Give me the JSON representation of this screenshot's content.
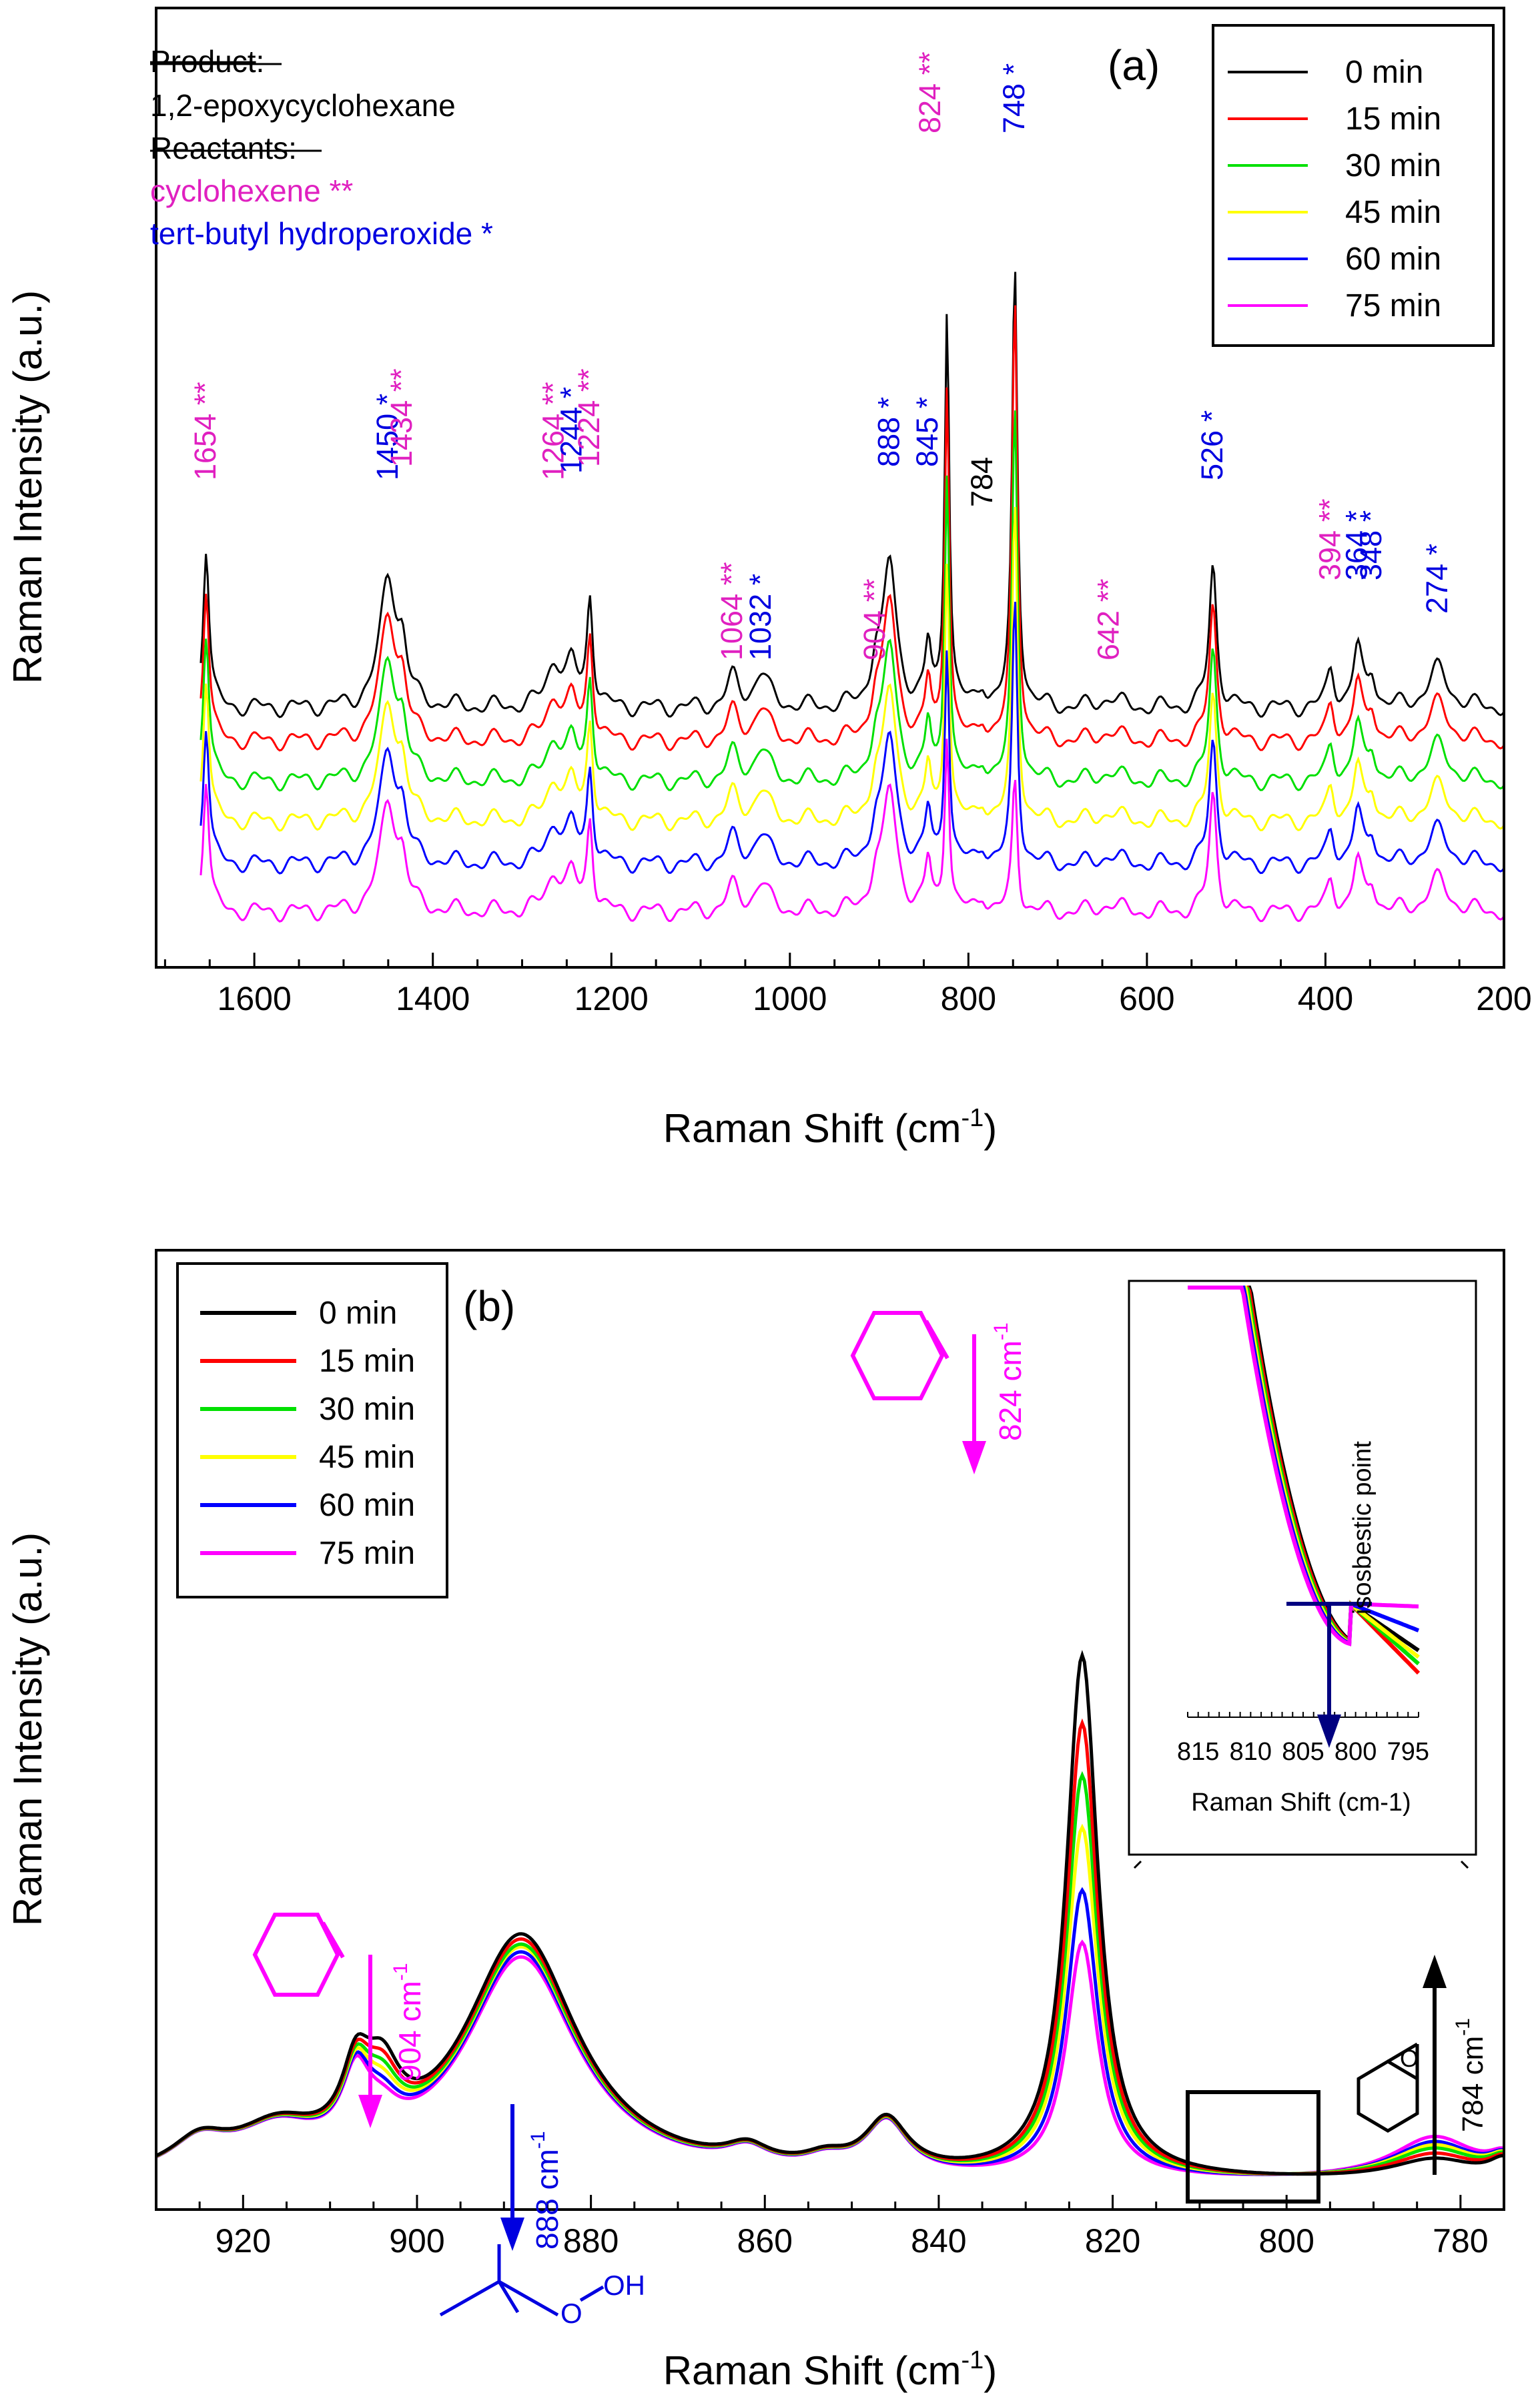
{
  "chart_data": [
    {
      "panel_label": "(a)",
      "type": "line",
      "xlabel": "Raman Shift (cm",
      "xlabel_sup": "-1",
      "xlabel_tail": ")",
      "ylabel": "Raman Intensity (a.u.)",
      "xlim": [
        1710,
        200
      ],
      "x_ticks": [
        "1600",
        "1400",
        "1200",
        "1000",
        "800",
        "600",
        "400",
        "200"
      ],
      "x_tick_values": [
        1600,
        1400,
        1200,
        1000,
        800,
        600,
        400,
        200
      ],
      "legend": [
        {
          "label": "0 min",
          "color": "#000000"
        },
        {
          "label": "15 min",
          "color": "#ff0000"
        },
        {
          "label": "30 min",
          "color": "#00e000"
        },
        {
          "label": "45 min",
          "color": "#ffff00"
        },
        {
          "label": "60 min",
          "color": "#0000ff"
        },
        {
          "label": "75 min",
          "color": "#ff00ff"
        }
      ],
      "series_offsets": [
        0,
        1,
        2,
        3,
        4,
        5
      ],
      "key": {
        "product_heading": "Product",
        "product_colon": ":",
        "product": "1,2-epoxycyclohexane",
        "reactants_heading": "Reactants",
        "reactants_colon": ":",
        "reactant_1": "cyclohexene **",
        "reactant_1_color": "#e020c0",
        "reactant_2": "tert-butyl hydroperoxide *",
        "reactant_2_color": "#0000e0"
      },
      "peaks": [
        {
          "x": 1654,
          "h": 1.25,
          "w": 4,
          "label": "1654 **",
          "color": "#e020c0"
        },
        {
          "x": 1450,
          "h": 1.0,
          "w": 11,
          "label": "1450 *",
          "color": "#0000e0"
        },
        {
          "x": 1434,
          "h": 0.35,
          "w": 6,
          "label": "1434 **",
          "color": "#e020c0"
        },
        {
          "x": 1264,
          "h": 0.35,
          "w": 10,
          "label": "1264 **",
          "color": "#e020c0"
        },
        {
          "x": 1244,
          "h": 0.3,
          "w": 7,
          "label": "1244 *",
          "color": "#0000e0"
        },
        {
          "x": 1224,
          "h": 0.85,
          "w": 4,
          "label": "1224 **",
          "color": "#e020c0"
        },
        {
          "x": 1064,
          "h": 0.22,
          "w": 8,
          "label": "1064 **",
          "color": "#e020c0"
        },
        {
          "x": 1032,
          "h": 0.26,
          "w": 10,
          "label": "1032 *",
          "color": "#0000e0"
        },
        {
          "x": 904,
          "h": 0.3,
          "w": 6,
          "label": "904 **",
          "color": "#e020c0"
        },
        {
          "x": 888,
          "h": 1.1,
          "w": 9,
          "label": "888 *",
          "color": "#0000e0"
        },
        {
          "x": 845,
          "h": 0.45,
          "w": 4,
          "label": "845 *",
          "color": "#0000e0"
        },
        {
          "x": 824,
          "h": 3.1,
          "w": 3,
          "label": "824 **",
          "color": "#e020c0"
        },
        {
          "x": 784,
          "h": 0.15,
          "w": 5,
          "label": "784",
          "color": "#000000"
        },
        {
          "x": 748,
          "h": 3.4,
          "w": 3.5,
          "label": "748 *",
          "color": "#0000e0"
        },
        {
          "x": 642,
          "h": 0.08,
          "w": 12,
          "label": "642 **",
          "color": "#e020c0"
        },
        {
          "x": 526,
          "h": 1.1,
          "w": 5,
          "label": "526 *",
          "color": "#0000e0"
        },
        {
          "x": 394,
          "h": 0.3,
          "w": 5,
          "label": "394 **",
          "color": "#e020c0"
        },
        {
          "x": 364,
          "h": 0.45,
          "w": 6,
          "label": "364 *",
          "color": "#0000e0"
        },
        {
          "x": 348,
          "h": 0.25,
          "w": 5,
          "label": "348 *",
          "color": "#0000e0"
        },
        {
          "x": 274,
          "h": 0.3,
          "w": 14,
          "label": "274 *",
          "color": "#0000e0"
        }
      ]
    },
    {
      "panel_label": "(b)",
      "type": "line",
      "xlabel": "Raman Shift (cm",
      "xlabel_sup": "-1",
      "xlabel_tail": ")",
      "ylabel": "Raman Intensity (a.u.)",
      "xlim": [
        930,
        775
      ],
      "x_ticks": [
        "920",
        "900",
        "880",
        "860",
        "840",
        "820",
        "800",
        "780"
      ],
      "x_tick_values": [
        920,
        900,
        880,
        860,
        840,
        820,
        800,
        780
      ],
      "legend": [
        {
          "label": "0 min",
          "color": "#000000"
        },
        {
          "label": "15 min",
          "color": "#ff0000"
        },
        {
          "label": "30 min",
          "color": "#00e000"
        },
        {
          "label": "45 min",
          "color": "#ffff00"
        },
        {
          "label": "60 min",
          "color": "#0000ff"
        },
        {
          "label": "75 min",
          "color": "#ff00ff"
        }
      ],
      "peak_824_scale": [
        1.0,
        0.87,
        0.77,
        0.67,
        0.55,
        0.45
      ],
      "peak_904_scale": [
        1.0,
        0.85,
        0.72,
        0.6,
        0.48,
        0.38
      ],
      "peak_888_scale": [
        1.0,
        0.98,
        0.96,
        0.95,
        0.93,
        0.91
      ],
      "peak_784_scale": [
        0.6,
        0.75,
        0.9,
        1.0,
        1.1,
        1.25
      ],
      "annotations": {
        "a824": {
          "text": "824 cm",
          "sup": "-1",
          "color": "#ff00ff"
        },
        "a904": {
          "text": "904 cm",
          "sup": "-1",
          "color": "#ff00ff"
        },
        "a888": {
          "text": "888 cm",
          "sup": "-1",
          "color": "#0000e0"
        },
        "a784": {
          "text": "784 cm",
          "sup": "-1",
          "color": "#000000"
        },
        "oh_label": "OH",
        "o_label": "O",
        "epox_o_label": "O"
      },
      "inset": {
        "xlabel": "Raman Shift (cm-1)",
        "x_ticks": [
          "815",
          "810",
          "805",
          "800",
          "795"
        ],
        "annotation": "isosbestic point"
      }
    }
  ]
}
